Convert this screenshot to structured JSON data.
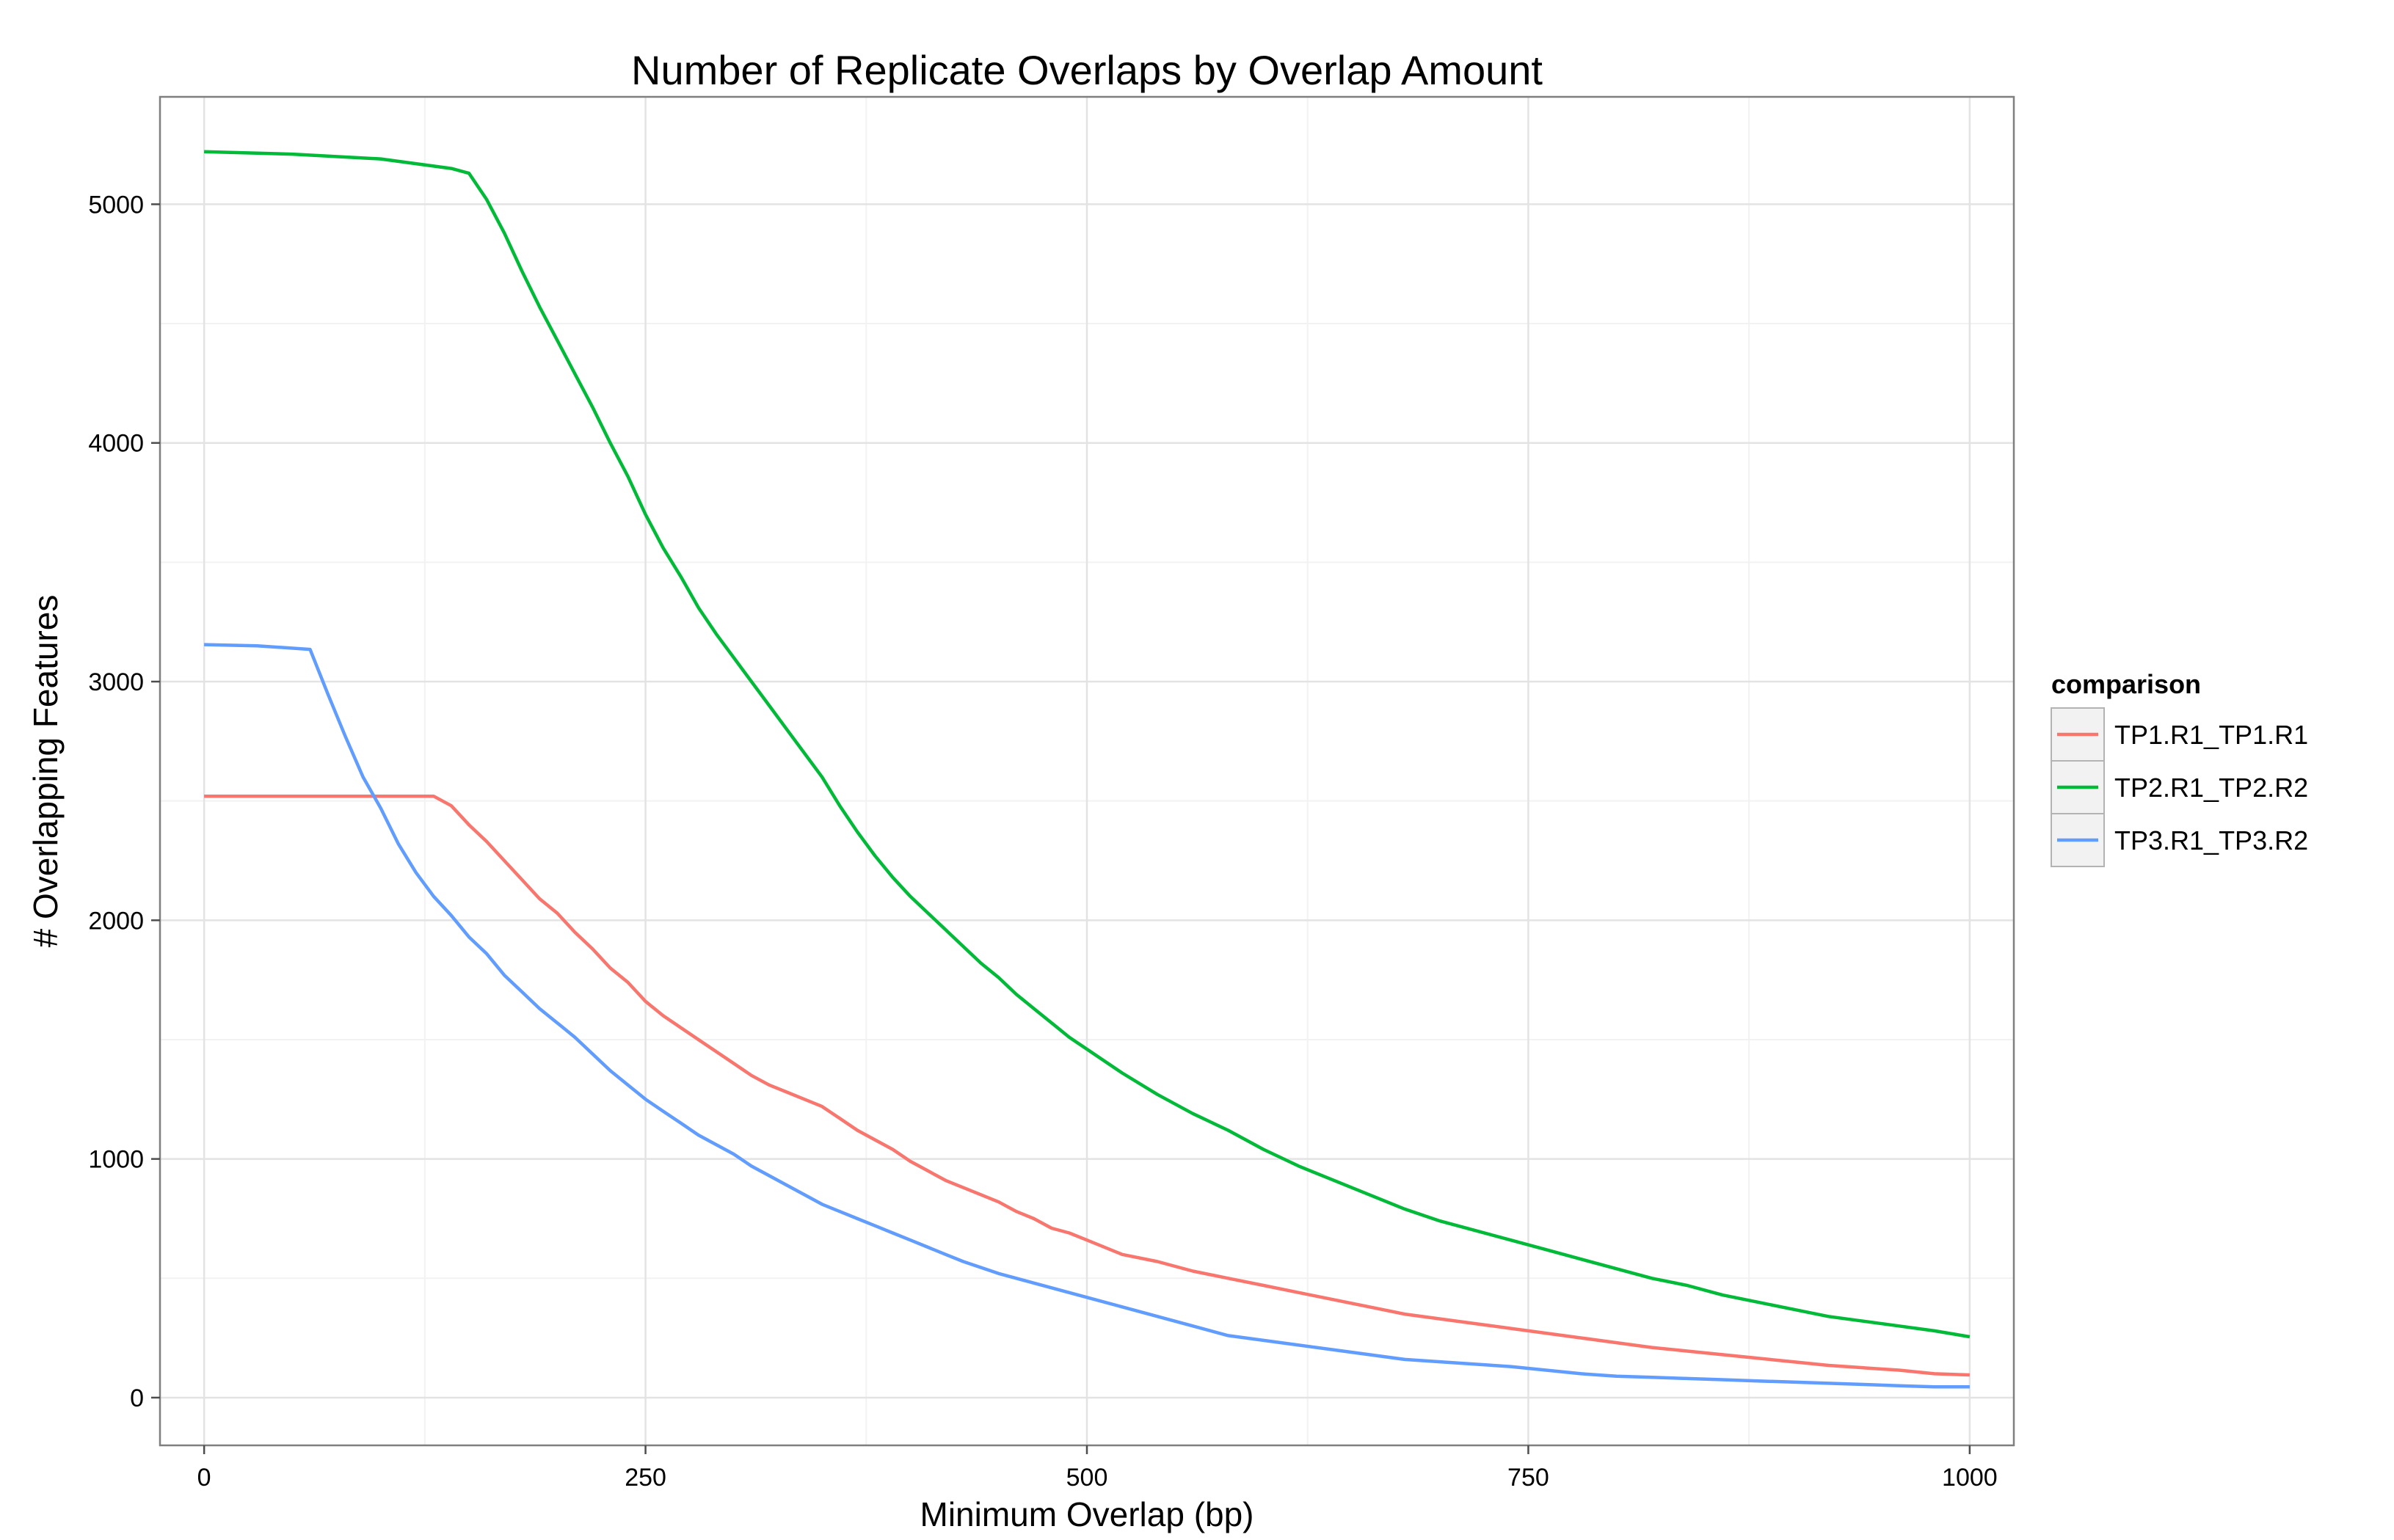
{
  "chart_data": {
    "type": "line",
    "title": "Number of Replicate Overlaps by Overlap Amount",
    "xlabel": "Minimum Overlap (bp)",
    "ylabel": "# Overlapping Features",
    "xlim": [
      -25,
      1025
    ],
    "ylim": [
      -200,
      5450
    ],
    "x_ticks": [
      0,
      250,
      500,
      750,
      1000
    ],
    "x_tick_labels": [
      "0",
      "250",
      "500",
      "750",
      "1000"
    ],
    "y_ticks": [
      0,
      1000,
      2000,
      3000,
      4000,
      5000
    ],
    "y_tick_labels": [
      "0",
      "1000",
      "2000",
      "3000",
      "4000",
      "5000"
    ],
    "grid": true,
    "legend": {
      "title": "comparison",
      "position": "right"
    },
    "series": [
      {
        "name": "TP1.R1_TP1.R1",
        "color": "#F8766D",
        "x": [
          0,
          50,
          100,
          130,
          140,
          150,
          160,
          170,
          180,
          190,
          200,
          210,
          220,
          230,
          240,
          250,
          260,
          270,
          280,
          290,
          300,
          310,
          320,
          330,
          340,
          350,
          360,
          370,
          380,
          390,
          400,
          410,
          420,
          430,
          440,
          450,
          460,
          470,
          480,
          490,
          500,
          520,
          540,
          560,
          580,
          600,
          620,
          640,
          660,
          680,
          700,
          720,
          740,
          760,
          780,
          800,
          820,
          840,
          860,
          880,
          900,
          920,
          940,
          960,
          980,
          1000
        ],
        "y": [
          2520,
          2520,
          2520,
          2520,
          2480,
          2400,
          2330,
          2250,
          2170,
          2090,
          2030,
          1950,
          1880,
          1800,
          1740,
          1660,
          1600,
          1550,
          1500,
          1450,
          1400,
          1350,
          1310,
          1280,
          1250,
          1220,
          1170,
          1120,
          1080,
          1040,
          990,
          950,
          910,
          880,
          850,
          820,
          780,
          750,
          710,
          690,
          660,
          600,
          570,
          530,
          500,
          470,
          440,
          410,
          380,
          350,
          330,
          310,
          290,
          270,
          250,
          230,
          210,
          195,
          180,
          165,
          150,
          135,
          125,
          115,
          100,
          95
        ]
      },
      {
        "name": "TP2.R1_TP2.R2",
        "color": "#00BA38",
        "x": [
          0,
          50,
          100,
          120,
          140,
          150,
          160,
          170,
          180,
          190,
          200,
          210,
          220,
          230,
          240,
          250,
          260,
          270,
          280,
          290,
          300,
          310,
          320,
          330,
          340,
          350,
          360,
          370,
          380,
          390,
          400,
          410,
          420,
          430,
          440,
          450,
          460,
          470,
          480,
          490,
          500,
          520,
          540,
          560,
          580,
          600,
          620,
          640,
          660,
          680,
          700,
          720,
          740,
          760,
          780,
          800,
          820,
          840,
          860,
          880,
          900,
          920,
          940,
          960,
          980,
          1000
        ],
        "y": [
          5220,
          5210,
          5190,
          5170,
          5150,
          5130,
          5020,
          4880,
          4720,
          4570,
          4430,
          4290,
          4150,
          4000,
          3860,
          3700,
          3560,
          3440,
          3310,
          3200,
          3100,
          3000,
          2900,
          2800,
          2700,
          2600,
          2480,
          2370,
          2270,
          2180,
          2100,
          2030,
          1960,
          1890,
          1820,
          1760,
          1690,
          1630,
          1570,
          1510,
          1460,
          1360,
          1270,
          1190,
          1120,
          1040,
          970,
          910,
          850,
          790,
          740,
          700,
          660,
          620,
          580,
          540,
          500,
          470,
          430,
          400,
          370,
          340,
          320,
          300,
          280,
          255
        ]
      },
      {
        "name": "TP3.R1_TP3.R2",
        "color": "#619CFF",
        "x": [
          0,
          30,
          60,
          70,
          80,
          90,
          100,
          110,
          120,
          130,
          140,
          150,
          160,
          170,
          180,
          190,
          200,
          210,
          220,
          230,
          240,
          250,
          260,
          270,
          280,
          290,
          300,
          310,
          320,
          330,
          340,
          350,
          360,
          370,
          380,
          390,
          400,
          410,
          420,
          430,
          440,
          450,
          460,
          470,
          480,
          490,
          500,
          520,
          540,
          560,
          580,
          600,
          620,
          640,
          660,
          680,
          700,
          720,
          740,
          760,
          780,
          800,
          820,
          840,
          860,
          880,
          900,
          920,
          940,
          960,
          980,
          1000
        ],
        "y": [
          3155,
          3150,
          3135,
          2950,
          2770,
          2600,
          2470,
          2320,
          2200,
          2100,
          2020,
          1930,
          1860,
          1770,
          1700,
          1630,
          1570,
          1510,
          1440,
          1370,
          1310,
          1250,
          1200,
          1150,
          1100,
          1060,
          1020,
          970,
          930,
          890,
          850,
          810,
          780,
          750,
          720,
          690,
          660,
          630,
          600,
          570,
          545,
          520,
          500,
          480,
          460,
          440,
          420,
          380,
          340,
          300,
          260,
          240,
          220,
          200,
          180,
          160,
          150,
          140,
          130,
          115,
          100,
          90,
          85,
          80,
          75,
          70,
          65,
          60,
          55,
          50,
          45,
          45
        ]
      }
    ]
  }
}
